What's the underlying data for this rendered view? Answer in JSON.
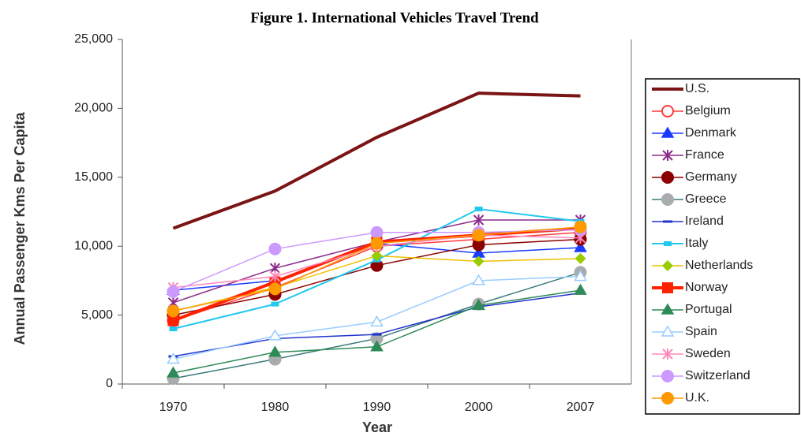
{
  "chart_data": {
    "type": "line",
    "title": "Figure 1. International Vehicles Travel Trend",
    "x_label": "Year",
    "y_label": "Annual Passenger Kms Per Capita",
    "categories": [
      "1970",
      "1980",
      "1990",
      "2000",
      "2007"
    ],
    "ylim": [
      0,
      25000
    ],
    "yticks": [
      0,
      {
        "value": 5000,
        "label": "5,000"
      },
      {
        "value": 10000,
        "label": "10,000"
      },
      {
        "value": 15000,
        "label": "15,000"
      },
      {
        "value": 20000,
        "label": "20,000"
      },
      {
        "value": 25000,
        "label": "25,000"
      }
    ],
    "legend": "right",
    "series": [
      {
        "name": "U.S.",
        "color": "#7b1414",
        "marker": "none",
        "width": 4,
        "values": [
          11300,
          14000,
          17900,
          21100,
          20900
        ]
      },
      {
        "name": "Belgium",
        "color": "#ff3b3b",
        "marker": "open-circle",
        "width": 1.5,
        "values": [
          4600,
          7000,
          10000,
          10500,
          11000
        ]
      },
      {
        "name": "Denmark",
        "color": "#1a3cff",
        "marker": "triangle",
        "width": 1.5,
        "values": [
          6800,
          7500,
          10200,
          9500,
          9900
        ]
      },
      {
        "name": "France",
        "color": "#8b2a8b",
        "marker": "star",
        "width": 1.5,
        "values": [
          5900,
          8400,
          10300,
          11900,
          11900
        ]
      },
      {
        "name": "Germany",
        "color": "#8b0000",
        "marker": "circle",
        "width": 1.5,
        "values": [
          5000,
          6500,
          8600,
          10100,
          10500
        ]
      },
      {
        "name": "Greece",
        "color": "#3a7a7a",
        "marker_color": "#a8acac",
        "marker": "circle",
        "width": 1.5,
        "values": [
          400,
          1800,
          3300,
          5800,
          8100
        ]
      },
      {
        "name": "Ireland",
        "color": "#2233cc",
        "marker": "dash",
        "width": 1.5,
        "values": [
          2000,
          3300,
          3600,
          5600,
          6600
        ]
      },
      {
        "name": "Italy",
        "color": "#22c8ee",
        "marker": "square",
        "width": 2,
        "values": [
          4000,
          5800,
          9000,
          12700,
          11800
        ]
      },
      {
        "name": "Netherlands",
        "color": "#f0c000",
        "marker_color": "#99cc00",
        "marker": "diamond",
        "width": 1.5,
        "values": [
          5300,
          7000,
          9300,
          8900,
          9100
        ]
      },
      {
        "name": "Norway",
        "color": "#ff2200",
        "marker": "big-square",
        "width": 4,
        "values": [
          4600,
          7400,
          10300,
          10800,
          11300
        ]
      },
      {
        "name": "Portugal",
        "color": "#2e8b57",
        "marker": "triangle",
        "width": 1.5,
        "values": [
          800,
          2300,
          2700,
          5700,
          6800
        ]
      },
      {
        "name": "Spain",
        "color": "#99ccff",
        "marker": "open-triangle",
        "width": 1.5,
        "values": [
          1800,
          3500,
          4500,
          7500,
          7800
        ]
      },
      {
        "name": "Sweden",
        "color": "#ff88bb",
        "marker": "star",
        "width": 1.5,
        "values": [
          7000,
          7800,
          10000,
          10800,
          10600
        ]
      },
      {
        "name": "Switzerland",
        "color": "#cc99ff",
        "marker": "circle",
        "width": 1.5,
        "values": [
          6700,
          9800,
          11000,
          11000,
          11200
        ]
      },
      {
        "name": "U.K.",
        "color": "#ff9900",
        "marker": "circle",
        "width": 1.5,
        "values": [
          5300,
          6900,
          10200,
          10800,
          11400
        ]
      }
    ]
  }
}
